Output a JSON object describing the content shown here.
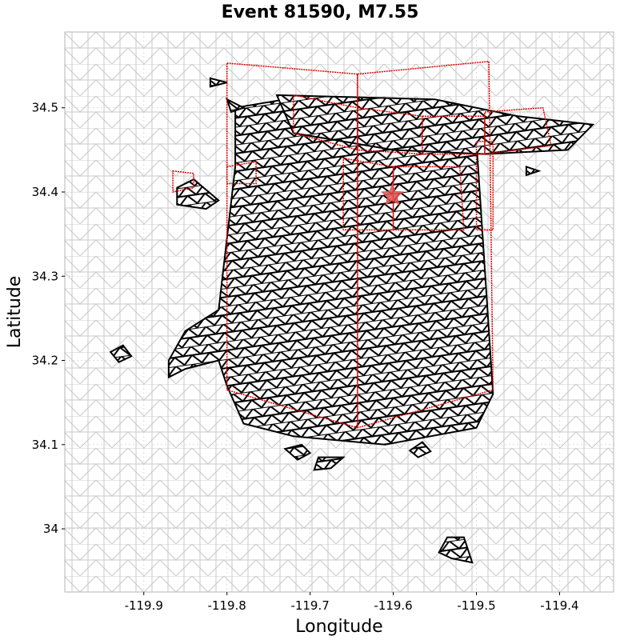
{
  "chart_data": {
    "type": "map",
    "title": "Event 81590, M7.55",
    "xlabel": "Longitude",
    "ylabel": "Latitude",
    "xlim": [
      -119.995,
      -119.335
    ],
    "ylim": [
      33.925,
      34.59
    ],
    "xticks": [
      -119.9,
      -119.8,
      -119.7,
      -119.6,
      -119.5,
      -119.4
    ],
    "xtick_labels": [
      "-119.9",
      "-119.8",
      "-119.7",
      "-119.6",
      "-119.5",
      "-119.4"
    ],
    "yticks": [
      34.0,
      34.1,
      34.2,
      34.3,
      34.4,
      34.5
    ],
    "ytick_labels": [
      "34",
      "34.1",
      "34.2",
      "34.3",
      "34.4",
      "34.5"
    ],
    "grid": true,
    "colors": {
      "background_mesh": "#c8c8c8",
      "ruptured_mesh": "#000000",
      "fault_outline": "#e00000",
      "epicenter": "#e05050"
    },
    "epicenter": {
      "lon": -119.601,
      "lat": 34.396,
      "marker": "star"
    },
    "fault_segments": [
      {
        "polygon": [
          [
            -119.8,
            34.553
          ],
          [
            -119.643,
            34.54
          ],
          [
            -119.643,
            34.12
          ],
          [
            -119.8,
            34.165
          ]
        ]
      },
      {
        "polygon": [
          [
            -119.643,
            34.54
          ],
          [
            -119.485,
            34.555
          ],
          [
            -119.48,
            34.165
          ],
          [
            -119.643,
            34.12
          ]
        ]
      },
      {
        "polygon": [
          [
            -119.66,
            34.44
          ],
          [
            -119.6,
            34.43
          ],
          [
            -119.6,
            34.355
          ],
          [
            -119.66,
            34.355
          ]
        ]
      },
      {
        "polygon": [
          [
            -119.6,
            34.43
          ],
          [
            -119.52,
            34.43
          ],
          [
            -119.515,
            34.355
          ],
          [
            -119.6,
            34.355
          ]
        ]
      },
      {
        "polygon": [
          [
            -119.48,
            34.46
          ],
          [
            -119.5,
            34.46
          ],
          [
            -119.5,
            34.355
          ],
          [
            -119.48,
            34.355
          ]
        ]
      },
      {
        "polygon": [
          [
            -119.72,
            34.515
          ],
          [
            -119.643,
            34.5
          ],
          [
            -119.643,
            34.45
          ],
          [
            -119.72,
            34.47
          ]
        ]
      },
      {
        "polygon": [
          [
            -119.643,
            34.5
          ],
          [
            -119.565,
            34.49
          ],
          [
            -119.565,
            34.445
          ],
          [
            -119.643,
            34.45
          ]
        ]
      },
      {
        "polygon": [
          [
            -119.565,
            34.49
          ],
          [
            -119.49,
            34.49
          ],
          [
            -119.49,
            34.445
          ],
          [
            -119.565,
            34.445
          ]
        ]
      },
      {
        "polygon": [
          [
            -119.49,
            34.495
          ],
          [
            -119.42,
            34.5
          ],
          [
            -119.41,
            34.455
          ],
          [
            -119.49,
            34.445
          ]
        ]
      },
      {
        "polygon": [
          [
            -119.8,
            34.43
          ],
          [
            -119.765,
            34.436
          ],
          [
            -119.765,
            34.41
          ],
          [
            -119.8,
            34.41
          ]
        ]
      },
      {
        "polygon": [
          [
            -119.865,
            34.425
          ],
          [
            -119.84,
            34.422
          ],
          [
            -119.84,
            34.405
          ],
          [
            -119.865,
            34.4
          ]
        ]
      }
    ],
    "ruptured_region": {
      "outline": [
        [
          -119.79,
          34.5
        ],
        [
          -119.73,
          34.51
        ],
        [
          -119.58,
          34.49
        ],
        [
          -119.5,
          34.46
        ],
        [
          -119.48,
          34.16
        ],
        [
          -119.5,
          34.12
        ],
        [
          -119.61,
          34.1
        ],
        [
          -119.72,
          34.11
        ],
        [
          -119.78,
          34.125
        ],
        [
          -119.8,
          34.17
        ],
        [
          -119.81,
          34.2
        ],
        [
          -119.85,
          34.19
        ],
        [
          -119.87,
          34.18
        ],
        [
          -119.87,
          34.2
        ],
        [
          -119.85,
          34.235
        ],
        [
          -119.81,
          34.26
        ],
        [
          -119.79,
          34.43
        ]
      ]
    },
    "ruptured_patches": [
      {
        "outline": [
          [
            -119.74,
            34.515
          ],
          [
            -119.55,
            34.51
          ],
          [
            -119.45,
            34.49
          ],
          [
            -119.36,
            34.48
          ],
          [
            -119.39,
            34.45
          ],
          [
            -119.49,
            34.445
          ],
          [
            -119.6,
            34.45
          ],
          [
            -119.72,
            34.47
          ]
        ]
      },
      {
        "outline": [
          [
            -119.86,
            34.405
          ],
          [
            -119.84,
            34.415
          ],
          [
            -119.81,
            34.39
          ],
          [
            -119.825,
            34.38
          ],
          [
            -119.86,
            34.385
          ]
        ]
      },
      {
        "outline": [
          [
            -119.94,
            34.21
          ],
          [
            -119.925,
            34.218
          ],
          [
            -119.915,
            34.205
          ],
          [
            -119.93,
            34.198
          ]
        ]
      },
      {
        "outline": [
          [
            -119.73,
            34.095
          ],
          [
            -119.71,
            34.1
          ],
          [
            -119.7,
            34.09
          ],
          [
            -119.715,
            34.082
          ]
        ]
      },
      {
        "outline": [
          [
            -119.69,
            34.085
          ],
          [
            -119.66,
            34.085
          ],
          [
            -119.675,
            34.072
          ],
          [
            -119.695,
            34.07
          ]
        ]
      },
      {
        "outline": [
          [
            -119.58,
            34.093
          ],
          [
            -119.565,
            34.103
          ],
          [
            -119.555,
            34.092
          ],
          [
            -119.57,
            34.085
          ]
        ]
      },
      {
        "outline": [
          [
            -119.535,
            33.99
          ],
          [
            -119.515,
            33.99
          ],
          [
            -119.505,
            33.96
          ],
          [
            -119.53,
            33.965
          ],
          [
            -119.545,
            33.972
          ]
        ]
      },
      {
        "outline": [
          [
            -119.82,
            34.535
          ],
          [
            -119.8,
            34.53
          ],
          [
            -119.82,
            34.525
          ]
        ]
      },
      {
        "outline": [
          [
            -119.8,
            34.51
          ],
          [
            -119.78,
            34.5
          ],
          [
            -119.795,
            34.495
          ]
        ]
      },
      {
        "outline": [
          [
            -119.44,
            34.43
          ],
          [
            -119.425,
            34.425
          ],
          [
            -119.44,
            34.42
          ]
        ]
      }
    ]
  }
}
